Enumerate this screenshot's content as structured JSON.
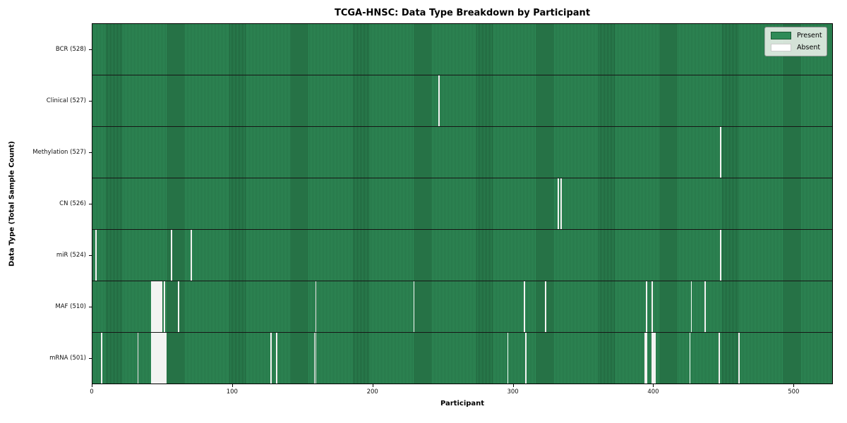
{
  "chart_data": {
    "type": "heatmap",
    "title": "TCGA-HNSC: Data Type Breakdown by Participant",
    "xlabel": "Participant",
    "ylabel": "Data Type (Total Sample Count)",
    "x_range": [
      0,
      528
    ],
    "x_ticks": [
      0,
      100,
      200,
      300,
      400,
      500
    ],
    "total_participants": 528,
    "grid": false,
    "legend": {
      "position": "upper right",
      "entries": [
        {
          "label": "Present",
          "swatch": "present"
        },
        {
          "label": "Absent",
          "swatch": "absent"
        }
      ]
    },
    "colors": {
      "present": "#2e8b57",
      "present_edge": "#1d5a36",
      "absent": "#f3f3f2",
      "row_divider": "#161616",
      "legend_border": "#9a9a9a"
    },
    "rows": [
      {
        "data_type": "BCR",
        "label": "BCR (528)",
        "count": 528,
        "absent_participants": []
      },
      {
        "data_type": "Clinical",
        "label": "Clinical (527)",
        "count": 527,
        "absent_participants": [
          247
        ]
      },
      {
        "data_type": "Methylation",
        "label": "Methylation (527)",
        "count": 527,
        "absent_participants": [
          448
        ]
      },
      {
        "data_type": "CN",
        "label": "CN (526)",
        "count": 526,
        "absent_participants": [
          332,
          334
        ]
      },
      {
        "data_type": "miR",
        "label": "miR (524)",
        "count": 524,
        "absent_participants": [
          2,
          56,
          70,
          448
        ]
      },
      {
        "data_type": "MAF",
        "label": "MAF (510)",
        "count": 510,
        "absent_participants": [
          42,
          43,
          44,
          45,
          46,
          47,
          48,
          49,
          51,
          61,
          159,
          229,
          308,
          323,
          395,
          399,
          427,
          437
        ]
      },
      {
        "data_type": "mRNA",
        "label": "mRNA (501)",
        "count": 501,
        "absent_participants": [
          6,
          32,
          42,
          43,
          44,
          45,
          46,
          47,
          48,
          49,
          50,
          51,
          52,
          127,
          131,
          158,
          159,
          296,
          309,
          394,
          395,
          399,
          400,
          401,
          426,
          447,
          461
        ]
      }
    ]
  }
}
